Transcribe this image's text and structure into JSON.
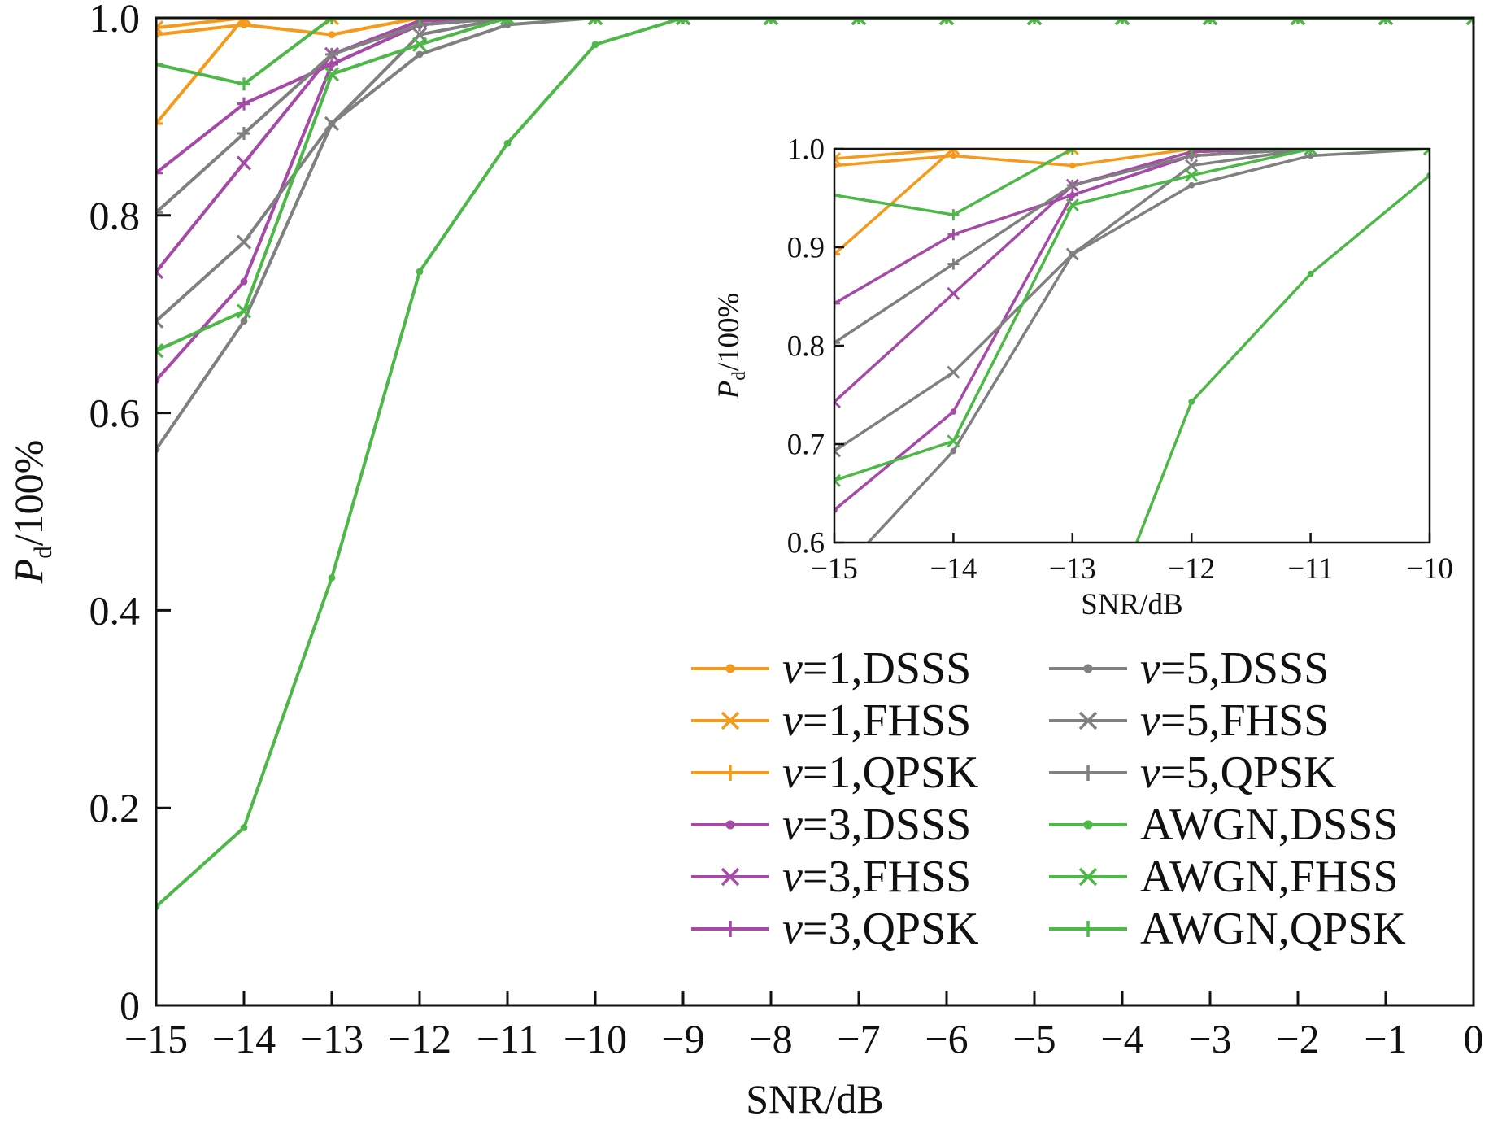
{
  "colors": {
    "v1": "#f59a1b",
    "v3": "#a54aa7",
    "v5": "#808080",
    "awgn": "#4db848",
    "axis": "#111111"
  },
  "chart_data": [
    {
      "id": "main",
      "type": "line",
      "xlabel": "SNR/dB",
      "ylabel_main": "P",
      "ylabel_sub": "d",
      "ylabel_rest": "/100%",
      "xlim": [
        -15,
        0
      ],
      "ylim": [
        0,
        1
      ],
      "x_ticks": [
        -15,
        -14,
        -13,
        -12,
        -11,
        -10,
        -9,
        -8,
        -7,
        -6,
        -5,
        -4,
        -3,
        -2,
        -1,
        0
      ],
      "x_tick_labels": [
        "−15",
        "−14",
        "−13",
        "−12",
        "−11",
        "−10",
        "−9",
        "−8",
        "−7",
        "−6",
        "−5",
        "−4",
        "−3",
        "−2",
        "−1",
        "0"
      ],
      "y_ticks": [
        0,
        0.2,
        0.4,
        0.6,
        0.8,
        1.0
      ],
      "y_tick_labels": [
        "0",
        "0.2",
        "0.4",
        "0.6",
        "0.8",
        "1.0"
      ],
      "x": [
        -15,
        -14,
        -13,
        -12,
        -11,
        -10,
        -9,
        -8,
        -7,
        -6,
        -5,
        -4,
        -3,
        -2,
        -1,
        0
      ],
      "legend_position": "lower-right",
      "series": [
        {
          "var": "v",
          "rest": "=1,DSSS",
          "color": "#f59a1b",
          "marker": "dot",
          "values": [
            0.983,
            0.993,
            0.983,
            1.0,
            1.0,
            1.0,
            1.0,
            1.0,
            1.0,
            1.0,
            1.0,
            1.0,
            1.0,
            1.0,
            1.0,
            1.0
          ]
        },
        {
          "var": "v",
          "rest": "=1,FHSS",
          "color": "#f59a1b",
          "marker": "x",
          "values": [
            0.99,
            1.0,
            1.0,
            1.0,
            1.0,
            1.0,
            1.0,
            1.0,
            1.0,
            1.0,
            1.0,
            1.0,
            1.0,
            1.0,
            1.0,
            1.0
          ]
        },
        {
          "var": "v",
          "rest": "=1,QPSK",
          "color": "#f59a1b",
          "marker": "plus",
          "values": [
            0.893,
            1.0,
            1.0,
            1.0,
            1.0,
            1.0,
            1.0,
            1.0,
            1.0,
            1.0,
            1.0,
            1.0,
            1.0,
            1.0,
            1.0,
            1.0
          ]
        },
        {
          "var": "v",
          "rest": "=3,DSSS",
          "color": "#a54aa7",
          "marker": "dot",
          "values": [
            0.633,
            0.733,
            0.953,
            0.993,
            1.0,
            1.0,
            1.0,
            1.0,
            1.0,
            1.0,
            1.0,
            1.0,
            1.0,
            1.0,
            1.0,
            1.0
          ]
        },
        {
          "var": "v",
          "rest": "=3,FHSS",
          "color": "#a54aa7",
          "marker": "x",
          "values": [
            0.743,
            0.853,
            0.963,
            0.997,
            1.0,
            1.0,
            1.0,
            1.0,
            1.0,
            1.0,
            1.0,
            1.0,
            1.0,
            1.0,
            1.0,
            1.0
          ]
        },
        {
          "var": "v",
          "rest": "=3,QPSK",
          "color": "#a54aa7",
          "marker": "plus",
          "values": [
            0.843,
            0.913,
            0.953,
            0.993,
            1.0,
            1.0,
            1.0,
            1.0,
            1.0,
            1.0,
            1.0,
            1.0,
            1.0,
            1.0,
            1.0,
            1.0
          ]
        },
        {
          "var": "v",
          "rest": "=5,DSSS",
          "color": "#808080",
          "marker": "dot",
          "values": [
            0.563,
            0.693,
            0.893,
            0.963,
            0.993,
            1.0,
            1.0,
            1.0,
            1.0,
            1.0,
            1.0,
            1.0,
            1.0,
            1.0,
            1.0,
            1.0
          ]
        },
        {
          "var": "v",
          "rest": "=5,FHSS",
          "color": "#808080",
          "marker": "x",
          "values": [
            0.693,
            0.773,
            0.893,
            0.983,
            1.0,
            1.0,
            1.0,
            1.0,
            1.0,
            1.0,
            1.0,
            1.0,
            1.0,
            1.0,
            1.0,
            1.0
          ]
        },
        {
          "var": "v",
          "rest": "=5,QPSK",
          "color": "#808080",
          "marker": "plus",
          "values": [
            0.803,
            0.883,
            0.963,
            0.993,
            1.0,
            1.0,
            1.0,
            1.0,
            1.0,
            1.0,
            1.0,
            1.0,
            1.0,
            1.0,
            1.0,
            1.0
          ]
        },
        {
          "var": "",
          "rest": "AWGN,DSSS",
          "color": "#4db848",
          "marker": "dot",
          "values": [
            0.1,
            0.18,
            0.433,
            0.743,
            0.873,
            0.973,
            1.0,
            1.0,
            1.0,
            1.0,
            1.0,
            1.0,
            1.0,
            1.0,
            1.0,
            1.0
          ]
        },
        {
          "var": "",
          "rest": "AWGN,FHSS",
          "color": "#4db848",
          "marker": "x",
          "values": [
            0.663,
            0.703,
            0.943,
            0.973,
            1.0,
            1.0,
            1.0,
            1.0,
            1.0,
            1.0,
            1.0,
            1.0,
            1.0,
            1.0,
            1.0,
            1.0
          ]
        },
        {
          "var": "",
          "rest": "AWGN,QPSK",
          "color": "#4db848",
          "marker": "plus",
          "values": [
            0.953,
            0.933,
            1.0,
            1.0,
            1.0,
            1.0,
            1.0,
            1.0,
            1.0,
            1.0,
            1.0,
            1.0,
            1.0,
            1.0,
            1.0,
            1.0
          ]
        }
      ]
    },
    {
      "id": "inset",
      "type": "line",
      "xlabel": "SNR/dB",
      "ylabel_main": "P",
      "ylabel_sub": "d",
      "ylabel_rest": "/100%",
      "xlim": [
        -15,
        -10
      ],
      "ylim": [
        0.6,
        1.0
      ],
      "x_ticks": [
        -15,
        -14,
        -13,
        -12,
        -11,
        -10
      ],
      "x_tick_labels": [
        "−15",
        "−14",
        "−13",
        "−12",
        "−11",
        "−10"
      ],
      "y_ticks": [
        0.6,
        0.7,
        0.8,
        0.9,
        1.0
      ],
      "y_tick_labels": [
        "0.6",
        "0.7",
        "0.8",
        "0.9",
        "1.0"
      ],
      "note_series": "same series as main chart, zoomed"
    }
  ]
}
